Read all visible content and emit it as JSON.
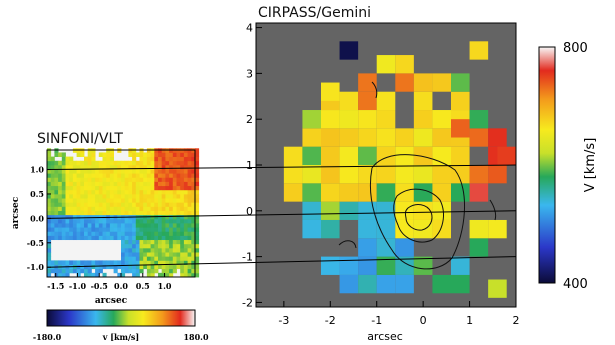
{
  "chart_data": [
    {
      "type": "heatmap",
      "title": "SINFONI/VLT",
      "xlabel": "arcsec",
      "ylabel": "arcsec",
      "xlim": [
        -1.7,
        1.7
      ],
      "ylim": [
        -1.2,
        1.4
      ],
      "xticks": [
        "-1.5",
        "-1.0",
        "-0.5",
        "0.0",
        "0.5",
        "1.0"
      ],
      "yticks": [
        "1.0",
        "0.5",
        "0.0",
        "-0.5",
        "-1.0"
      ],
      "colorbar": {
        "label": "v [km/s]",
        "min": "-180.0",
        "max": "180.0",
        "orientation": "horizontal"
      },
      "velocity_field": [
        {
          "region": "upper band (y > 0.05)",
          "v": "+40 to +120 (yellow-orange, red to the right)"
        },
        {
          "region": "lower band (-0.5 < y < 0.05)",
          "v": "-120 to -40 (blue-cyan)"
        },
        {
          "region": "lower-left hole",
          "v": "no data"
        }
      ]
    },
    {
      "type": "heatmap",
      "title": "CIRPASS/Gemini",
      "xlabel": "arcsec",
      "ylabel": "",
      "xlim": [
        -3.6,
        2.0
      ],
      "ylim": [
        -2.1,
        4.1
      ],
      "xticks": [
        "-3",
        "-2",
        "-1",
        "0",
        "1",
        "2"
      ],
      "yticks": [
        "4",
        "3",
        "2",
        "1",
        "0",
        "-1",
        "-2"
      ],
      "colorbar": {
        "label": "V [km/s]",
        "min": "400",
        "max": "800",
        "orientation": "vertical"
      },
      "velocity_field": [
        {
          "region": "north (y > 0)",
          "V": "600-700 km/s (yellow-orange)"
        },
        {
          "region": "south (y < 0)",
          "V": "450-560 km/s (blue-cyan)"
        }
      ],
      "contours": "intensity contours centred near (0, -0.3)"
    }
  ],
  "reference_lines_y": [
    "1",
    "0",
    "-1"
  ]
}
